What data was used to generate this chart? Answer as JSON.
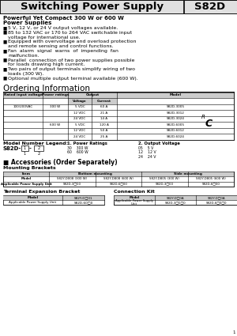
{
  "title": "Switching Power Supply",
  "model": "S82D",
  "subtitle_line1": "Powerful Yet Compact 300 W or 600 W",
  "subtitle_line2": "Power Supplies",
  "bullets": [
    "5 V, 12 V, or 24 V output voltages available.",
    "85 to 132 VAC or 170 to 264 VAC switchable input\n    voltage for international use.",
    "Equipped with overvoltage and overload protection\n    and remote sensing and control functions.",
    "Fan  alarm  signal  warns  of  impending  fan\n    malfunction.",
    "Parallel  connection of two power supplies possible\n    for loads drawing high current.",
    "Two pairs of output terminals simplify wiring of two\n    loads (300 W).",
    "Optional multiple output terminal available (600 W)."
  ],
  "ordering_title": "Ordering Information",
  "table_rows": [
    [
      "100/200VAC",
      "300 W",
      "5 VDC",
      "60 A",
      "S82D-3005"
    ],
    [
      "",
      "",
      "12 VDC",
      "21 A",
      "S82D-3012"
    ],
    [
      "",
      "",
      "24 VDC",
      "14 A",
      "S82D-3024"
    ],
    [
      "",
      "600 W",
      "5 VDC",
      "120 A",
      "S82D-6005"
    ],
    [
      "",
      "",
      "12 VDC",
      "50 A",
      "S82D-6012"
    ],
    [
      "",
      "",
      "24 VDC",
      "25 A",
      "S82D-6024"
    ]
  ],
  "legend_title": "Model Number Legend:",
  "legend_1_title": "1. Power Ratings",
  "legend_1_items": [
    "30    300 W",
    "60    600 W"
  ],
  "legend_2_title": "2. Output Voltage",
  "legend_2_items": [
    "05    5 V",
    "12    12 V",
    "24    24 V"
  ],
  "accessories_title": "Accessories (Order Separately)",
  "mounting_title": "Mounting Brackets",
  "terminal_title": "Terminal Expansion Bracket",
  "connection_title": "Connection Kit",
  "bg_color": "#ffffff"
}
